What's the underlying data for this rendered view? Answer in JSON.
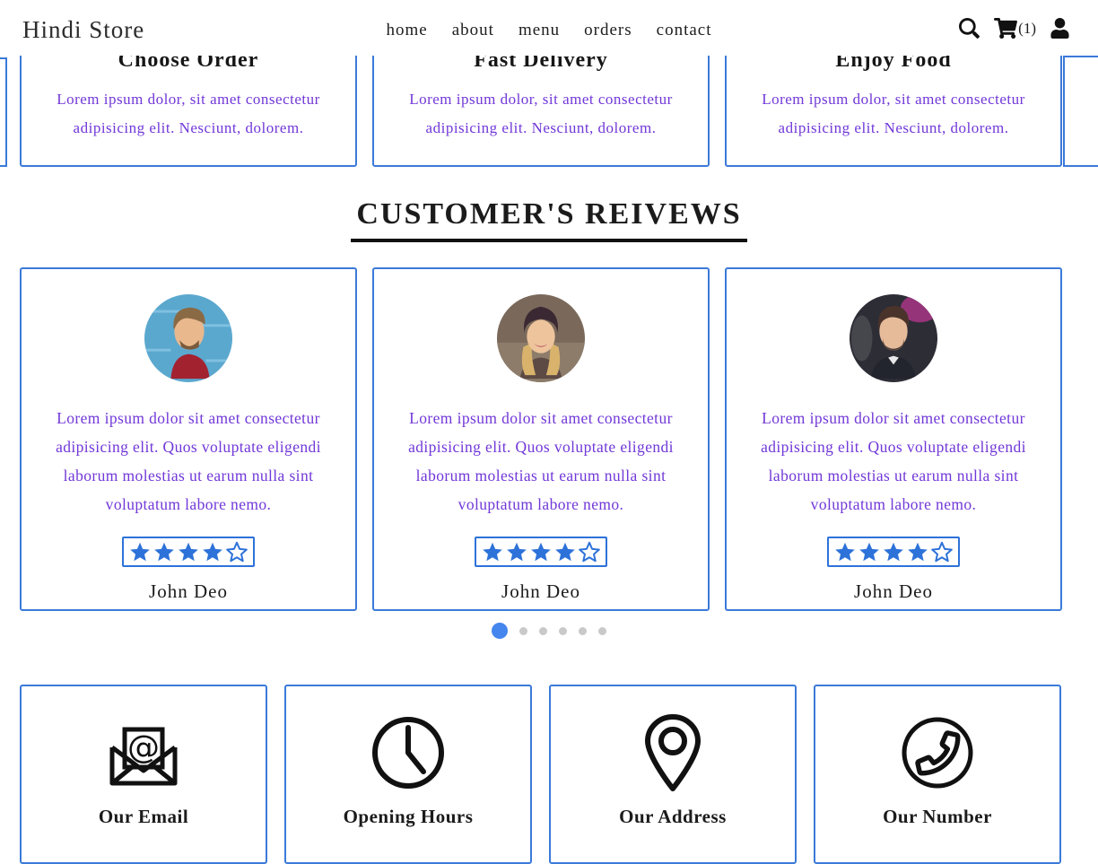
{
  "header": {
    "logo": "Hindi Store",
    "nav": [
      "home",
      "about",
      "menu",
      "orders",
      "contact"
    ],
    "cart_count": "(1)"
  },
  "steps": {
    "cards": [
      {
        "title": "Choose Order",
        "text": "Lorem ipsum dolor, sit amet consectetur adipisicing elit. Nesciunt, dolorem."
      },
      {
        "title": "Fast Delivery",
        "text": "Lorem ipsum dolor, sit amet consectetur adipisicing elit. Nesciunt, dolorem."
      },
      {
        "title": "Enjoy Food",
        "text": "Lorem ipsum dolor, sit amet consectetur adipisicing elit. Nesciunt, dolorem."
      }
    ]
  },
  "reviews": {
    "heading": "CUSTOMER'S REIVEWS",
    "cards": [
      {
        "text": "Lorem ipsum dolor sit amet consectetur adipisicing elit. Quos voluptate eligendi laborum molestias ut earum nulla sint voluptatum labore nemo.",
        "name": "John Deo",
        "rating": "4.5 of 5 stars",
        "avatar": "man with red shirt against blue brick wall"
      },
      {
        "text": "Lorem ipsum dolor sit amet consectetur adipisicing elit. Quos voluptate eligendi laborum molestias ut earum nulla sint voluptatum labore nemo.",
        "name": "John Deo",
        "rating": "4.5 of 5 stars",
        "avatar": "smiling woman with dark beanie and blonde hair"
      },
      {
        "text": "Lorem ipsum dolor sit amet consectetur adipisicing elit. Quos voluptate eligendi laborum molestias ut earum nulla sint voluptatum labore nemo.",
        "name": "John Deo",
        "rating": "4.5 of 5 stars",
        "avatar": "man in dark suit"
      }
    ],
    "carousel": {
      "dot_count": 6,
      "active_index": 0
    }
  },
  "contact": {
    "cards": [
      {
        "icon": "email-envelope-icon",
        "label": "Our Email"
      },
      {
        "icon": "clock-icon",
        "label": "Opening Hours"
      },
      {
        "icon": "location-pin-icon",
        "label": "Our Address"
      },
      {
        "icon": "phone-icon",
        "label": "Our Number"
      }
    ]
  },
  "colors": {
    "card_border_blue": "#3b7ad9",
    "star_blue": "#2d72d9",
    "active_dot_blue": "#4486ee",
    "inactive_dot_gray": "#c9c9c9",
    "body_text_purple": "#7138d8",
    "heading_black": "#1b1b1b"
  }
}
